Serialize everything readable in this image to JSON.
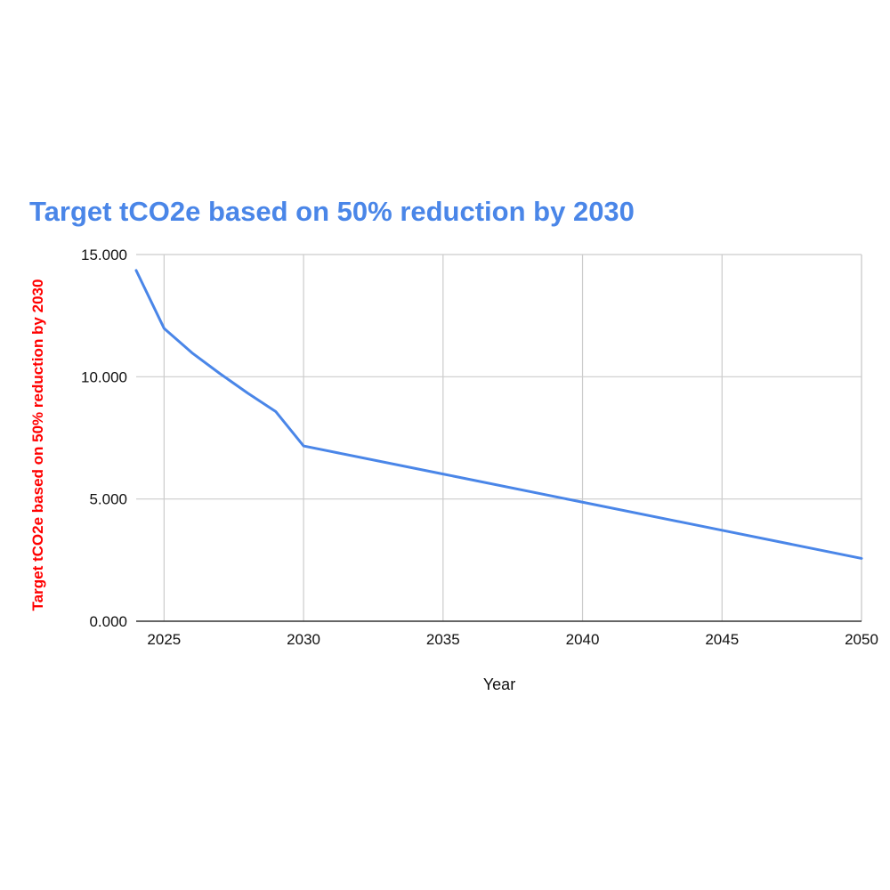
{
  "chart_data": {
    "type": "line",
    "title": "Target tCO2e based on 50% reduction by 2030",
    "xlabel": "Year",
    "ylabel": "Target tCO2e based on 50% reduction by 2030",
    "xlim": [
      2024,
      2050
    ],
    "ylim": [
      0,
      15
    ],
    "x_ticks": [
      2025,
      2030,
      2035,
      2040,
      2045,
      2050
    ],
    "x_tick_labels": [
      "2025",
      "2030",
      "2035",
      "2040",
      "2045",
      "2050"
    ],
    "y_ticks": [
      0,
      5,
      10,
      15
    ],
    "y_tick_labels": [
      "0.000",
      "5.000",
      "10.000",
      "15.000"
    ],
    "grid": true,
    "legend": "none",
    "series": [
      {
        "name": "Target tCO2e based on 50% reduction by 2030",
        "x": [
          2024,
          2025,
          2026,
          2027,
          2028,
          2029,
          2030,
          2035,
          2040,
          2045,
          2050
        ],
        "values": [
          14.35,
          11.98,
          10.98,
          10.13,
          9.33,
          8.58,
          7.17,
          6.02,
          4.87,
          3.72,
          2.57
        ]
      }
    ],
    "colors": {
      "title": "#4a86e8",
      "ylabel": "#ff0000",
      "line": "#4a86e8",
      "grid": "#cccccc",
      "axis": "#333333"
    }
  }
}
